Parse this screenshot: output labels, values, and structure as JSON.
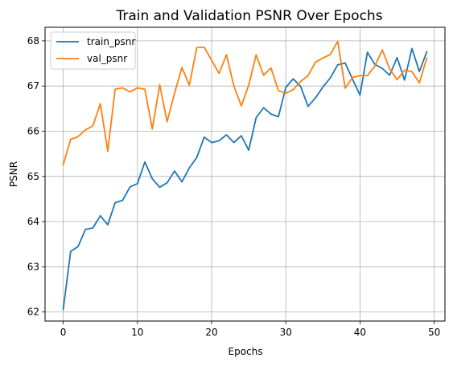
{
  "chart_data": {
    "type": "line",
    "title": "Train and Validation PSNR Over Epochs",
    "xlabel": "Epochs",
    "ylabel": "PSNR",
    "xlim": [
      -2.45,
      51.45
    ],
    "ylim": [
      61.8,
      68.3
    ],
    "xticks": [
      0,
      10,
      20,
      30,
      40,
      50
    ],
    "yticks": [
      62,
      63,
      64,
      65,
      66,
      67,
      68
    ],
    "grid": true,
    "legend_position": "top-left",
    "x": [
      0,
      1,
      2,
      3,
      4,
      5,
      6,
      7,
      8,
      9,
      10,
      11,
      12,
      13,
      14,
      15,
      16,
      17,
      18,
      19,
      20,
      21,
      22,
      23,
      24,
      25,
      26,
      27,
      28,
      29,
      30,
      31,
      32,
      33,
      34,
      35,
      36,
      37,
      38,
      39,
      40,
      41,
      42,
      43,
      44,
      45,
      46,
      47,
      48,
      49
    ],
    "series": [
      {
        "name": "train_psnr",
        "color": "#1f77b4",
        "values": [
          62.06,
          63.34,
          63.45,
          63.83,
          63.86,
          64.13,
          63.93,
          64.42,
          64.47,
          64.77,
          64.84,
          65.32,
          64.95,
          64.76,
          64.86,
          65.12,
          64.88,
          65.19,
          65.42,
          65.87,
          65.75,
          65.79,
          65.92,
          65.75,
          65.9,
          65.58,
          66.3,
          66.52,
          66.38,
          66.32,
          66.97,
          67.16,
          66.99,
          66.55,
          66.74,
          66.98,
          67.18,
          67.47,
          67.51,
          67.15,
          66.8,
          67.75,
          67.48,
          67.39,
          67.24,
          67.63,
          67.13,
          67.83,
          67.32,
          67.76
        ]
      },
      {
        "name": "val_psnr",
        "color": "#ff7f0e",
        "values": [
          65.26,
          65.82,
          65.88,
          66.03,
          66.12,
          66.61,
          65.56,
          66.93,
          66.96,
          66.87,
          66.96,
          66.93,
          66.05,
          67.03,
          66.21,
          66.84,
          67.41,
          67.02,
          67.85,
          67.86,
          67.57,
          67.28,
          67.69,
          67.0,
          66.56,
          67.02,
          67.69,
          67.24,
          67.4,
          66.9,
          66.84,
          66.92,
          67.1,
          67.23,
          67.53,
          67.62,
          67.7,
          67.99,
          66.95,
          67.19,
          67.23,
          67.23,
          67.44,
          67.8,
          67.38,
          67.14,
          67.35,
          67.32,
          67.07,
          67.62
        ]
      }
    ]
  }
}
